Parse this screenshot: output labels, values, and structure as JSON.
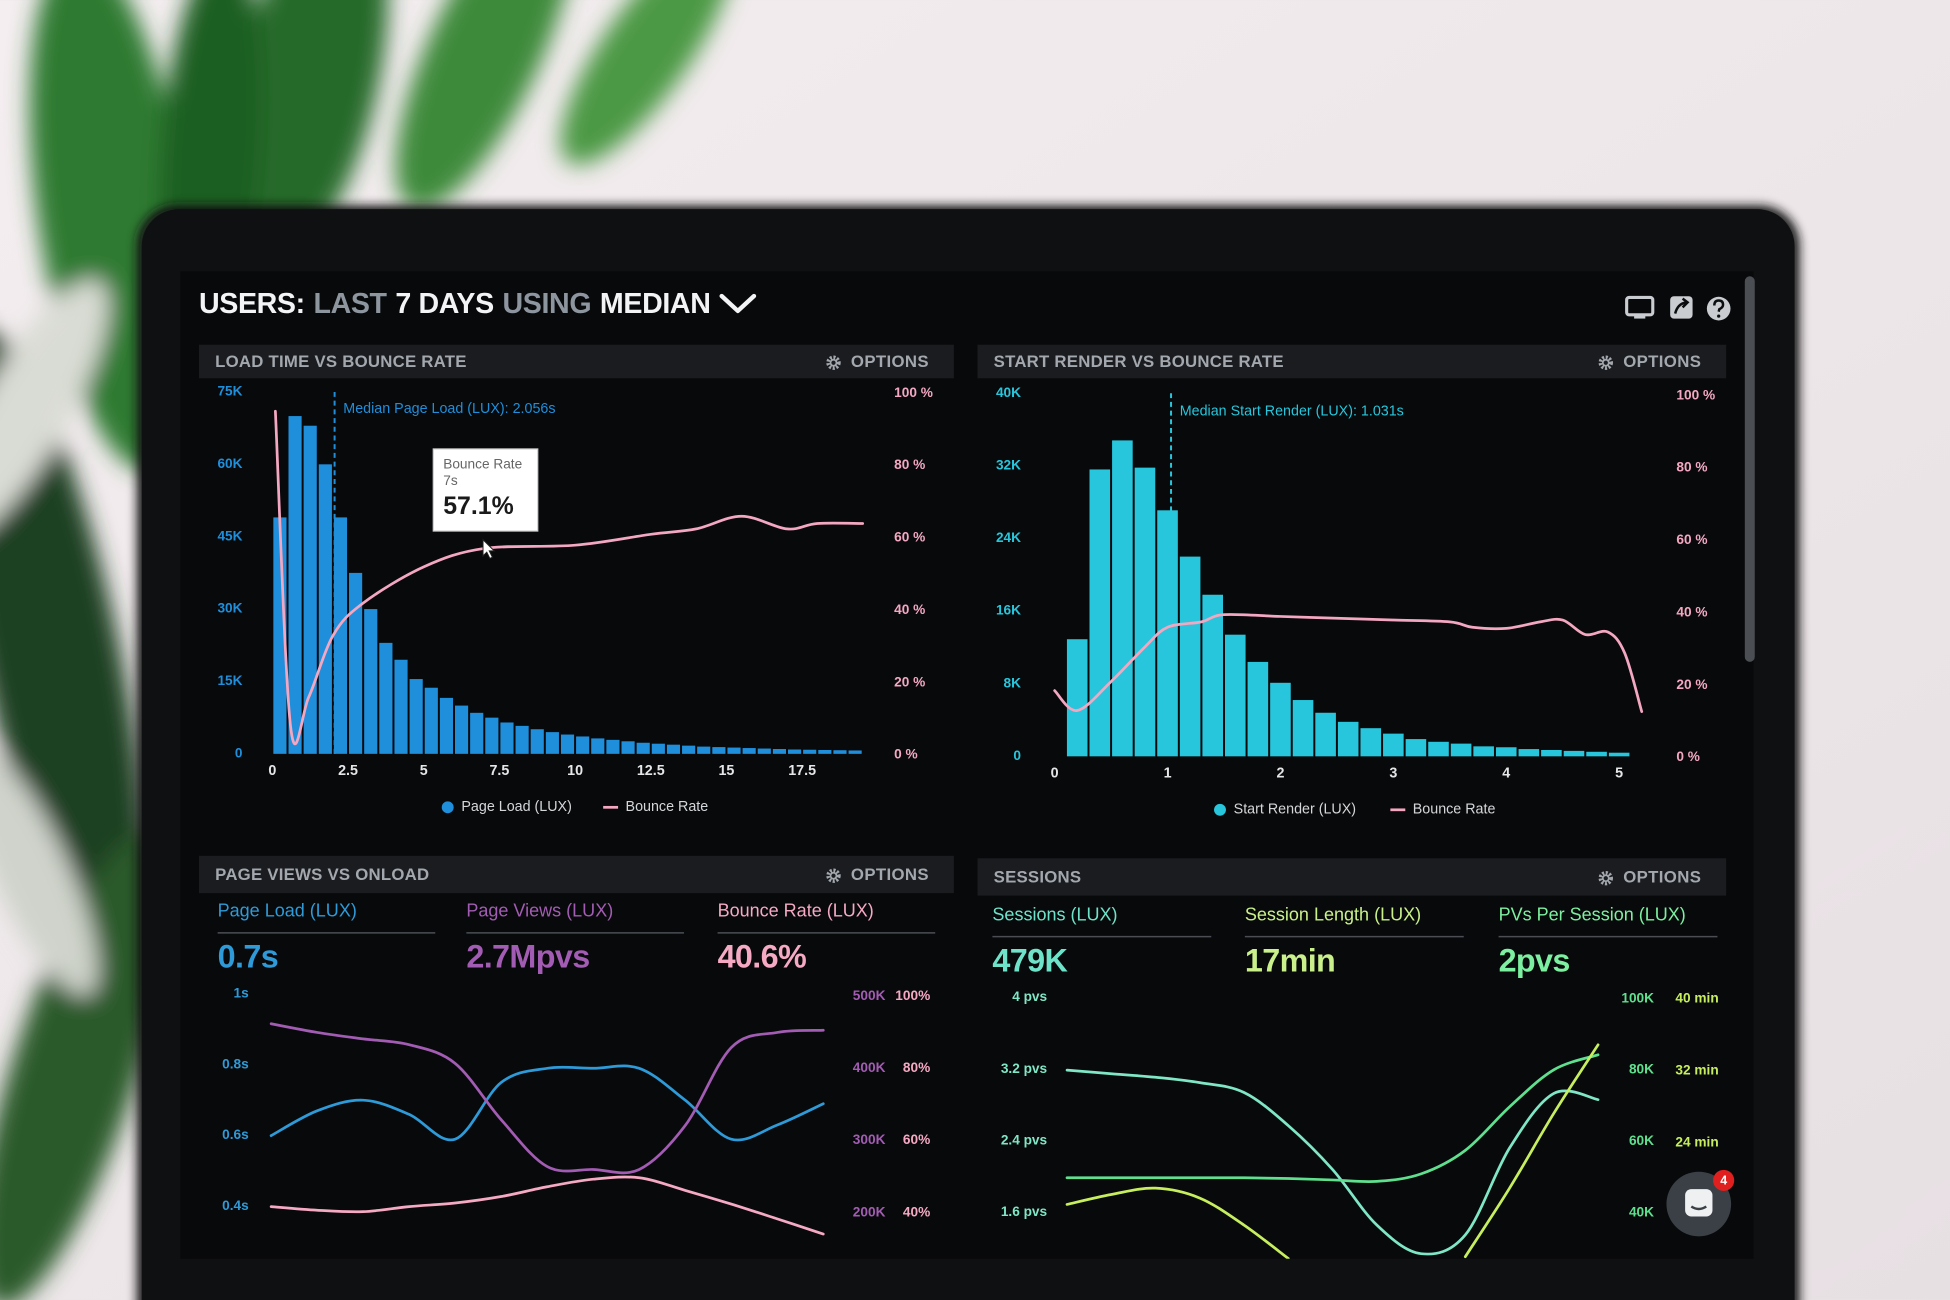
{
  "header": {
    "title": [
      "USERS:",
      "LAST",
      "7 DAYS",
      "USING",
      "MEDIAN"
    ]
  },
  "chat_widget": {
    "badge": "4"
  },
  "chart_data": [
    {
      "type": "histogram",
      "title": "LOAD TIME VS BOUNCE RATE",
      "options": "OPTIONS",
      "bins": [
        0,
        0.5,
        1,
        1.5,
        2,
        2.5,
        3,
        3.5,
        4,
        4.5,
        5,
        5.5,
        6,
        6.5,
        7,
        7.5,
        8,
        8.5,
        9,
        9.5,
        10,
        10.5,
        11,
        11.5,
        12,
        12.5,
        13,
        13.5,
        14,
        14.5,
        15,
        15.5,
        16,
        16.5,
        17,
        17.5,
        18,
        18.5,
        19,
        19.5
      ],
      "series": [
        {
          "name": "Page Load (LUX)",
          "color": "#1f8fdc",
          "values": [
            49000,
            70000,
            68000,
            60000,
            49000,
            37500,
            30000,
            23000,
            19500,
            15500,
            13700,
            11600,
            10000,
            8500,
            7500,
            6500,
            5800,
            5100,
            4500,
            4000,
            3600,
            3200,
            2900,
            2600,
            2300,
            2100,
            1900,
            1700,
            1500,
            1400,
            1300,
            1200,
            1100,
            1000,
            900,
            850,
            800,
            750,
            700
          ]
        },
        {
          "name": "Bounce Rate",
          "color": "#f4a7c1",
          "type": "line",
          "axis": "y2",
          "x": [
            0.1,
            0.6,
            1.2,
            2,
            3,
            5,
            7,
            10,
            12.5,
            14,
            15.5,
            17,
            18,
            19.5
          ],
          "values": [
            95,
            8,
            16,
            33,
            42,
            52,
            57.1,
            58,
            61,
            62.5,
            66,
            62.5,
            64,
            64
          ]
        }
      ],
      "xlim": [
        -0.3,
        19.85
      ],
      "xticks": [
        0,
        2.5,
        5,
        7.5,
        10,
        12.5,
        15,
        17.5
      ],
      "ylim": [
        0,
        75000
      ],
      "yticks": [
        0,
        {
          "value": 15000,
          "label": "15K"
        },
        {
          "value": 30000,
          "label": "30K"
        },
        {
          "value": 45000,
          "label": "45K"
        },
        {
          "value": 60000,
          "label": "60K"
        },
        {
          "value": 75000,
          "label": "75K"
        }
      ],
      "y2lim": [
        0,
        100
      ],
      "y2ticks": [
        {
          "value": 0,
          "label": "0 %"
        },
        {
          "value": 20,
          "label": "20 %"
        },
        {
          "value": 40,
          "label": "40 %"
        },
        {
          "value": 60,
          "label": "60 %"
        },
        {
          "value": 80,
          "label": "80 %"
        },
        {
          "value": 100,
          "label": "100 %"
        }
      ],
      "annotations": [
        {
          "text": "Median Page Load (LUX): 2.056s",
          "x": 2.056
        }
      ],
      "tooltip": {
        "title": "Bounce Rate",
        "x": 7,
        "x_label": "7s",
        "value": 57.1,
        "value_label": "57.1%"
      }
    },
    {
      "type": "histogram",
      "title": "START RENDER VS BOUNCE RATE",
      "options": "OPTIONS",
      "bins": [
        0.1,
        0.3,
        0.5,
        0.7,
        0.9,
        1.1,
        1.3,
        1.5,
        1.7,
        1.9,
        2.1,
        2.3,
        2.5,
        2.7,
        2.9,
        3.1,
        3.3,
        3.5,
        3.7,
        3.9,
        4.1,
        4.3,
        4.5,
        4.7,
        4.9,
        5.1
      ],
      "series": [
        {
          "name": "Start Render (LUX)",
          "color": "#27c6dc",
          "values": [
            12900,
            31600,
            34800,
            31800,
            27100,
            22000,
            17800,
            13400,
            10400,
            8100,
            6200,
            4800,
            3800,
            3100,
            2500,
            1900,
            1600,
            1400,
            1100,
            1000,
            800,
            700,
            600,
            500,
            400
          ]
        },
        {
          "name": "Bounce Rate",
          "color": "#f4a7c1",
          "type": "line",
          "axis": "y2",
          "x": [
            0,
            0.2,
            0.5,
            0.8,
            1,
            1.3,
            1.5,
            2,
            2.5,
            3,
            3.5,
            3.7,
            4,
            4.3,
            4.5,
            4.7,
            4.9,
            5.05,
            5.2
          ],
          "values": [
            18.5,
            13,
            21,
            30.6,
            36,
            37.5,
            39.5,
            39,
            38.5,
            38,
            37.5,
            36,
            35.7,
            37.5,
            38,
            34,
            34.7,
            28.8,
            12.7
          ]
        }
      ],
      "xlim": [
        -0.05,
        5.3
      ],
      "xticks": [
        0,
        1,
        2,
        3,
        4,
        5
      ],
      "ylim": [
        0,
        40000
      ],
      "yticks": [
        0,
        {
          "value": 8000,
          "label": "8K"
        },
        {
          "value": 16000,
          "label": "16K"
        },
        {
          "value": 24000,
          "label": "24K"
        },
        {
          "value": 32000,
          "label": "32K"
        },
        {
          "value": 40000,
          "label": "40K"
        }
      ],
      "y2lim": [
        0,
        100
      ],
      "y2ticks": [
        {
          "value": 0,
          "label": "0 %"
        },
        {
          "value": 20,
          "label": "20 %"
        },
        {
          "value": 40,
          "label": "40 %"
        },
        {
          "value": 60,
          "label": "60 %"
        },
        {
          "value": 80,
          "label": "80 %"
        },
        {
          "value": 100,
          "label": "100 %"
        }
      ],
      "annotations": [
        {
          "text": "Median Start Render (LUX): 1.031s",
          "x": 1.031
        }
      ]
    },
    {
      "type": "line",
      "title": "PAGE VIEWS VS ONLOAD",
      "options": "OPTIONS",
      "stats": [
        {
          "name": "Page Load (LUX)",
          "value": "0.7s",
          "color": "#2e9ad8"
        },
        {
          "name": "Page Views (LUX)",
          "value": "2.7Mpvs",
          "color": "#a35cb3"
        },
        {
          "name": "Bounce Rate (LUX)",
          "value": "40.6%",
          "color": "#f5a9c3"
        }
      ],
      "categories": [
        null,
        null,
        null,
        null,
        null,
        null,
        null,
        null,
        null,
        null,
        null,
        null,
        null
      ],
      "series": [
        {
          "color": "#2e9ad8",
          "values": [
            0.6,
            0.67,
            0.7,
            0.66,
            0.59,
            0.75,
            0.79,
            0.79,
            0.79,
            0.7,
            0.59,
            0.63,
            0.69
          ]
        },
        {
          "color": "#a35cb3",
          "axis": "y2",
          "values": [
            462000,
            450000,
            441000,
            433000,
            407000,
            329000,
            264000,
            260000,
            260000,
            321000,
            429000,
            450000,
            453000
          ]
        },
        {
          "color": "#f5a9c3",
          "axis": "y3",
          "values": [
            41.7,
            40.7,
            40.3,
            41.7,
            42.7,
            44.5,
            47.2,
            49.3,
            49.7,
            46.2,
            42.4,
            38.3,
            34.1
          ]
        }
      ],
      "ylim": [
        0.3,
        1
      ],
      "yticks": [
        {
          "value": 1,
          "label": "1s"
        },
        {
          "value": 0.8,
          "label": "0.8s"
        },
        {
          "value": 0.6,
          "label": "0.6s"
        },
        {
          "value": 0.4,
          "label": "0.4s"
        }
      ],
      "y2lim": [
        150000,
        500000
      ],
      "y2ticks": [
        {
          "value": 500000,
          "label": "500K"
        },
        {
          "value": 400000,
          "label": "400K"
        },
        {
          "value": 300000,
          "label": "300K"
        },
        {
          "value": 200000,
          "label": "200K"
        }
      ],
      "y3lim": [
        30,
        100
      ],
      "y3ticks": [
        {
          "value": 100,
          "label": "100%"
        },
        {
          "value": 80,
          "label": "80%"
        },
        {
          "value": 60,
          "label": "60%"
        },
        {
          "value": 40,
          "label": "40%"
        }
      ]
    },
    {
      "type": "line",
      "title": "SESSIONS",
      "options": "OPTIONS",
      "stats": [
        {
          "name": "Sessions (LUX)",
          "value": "479K",
          "color": "#6fe3c9"
        },
        {
          "name": "Session Length (LUX)",
          "value": "17min",
          "color": "#c9f08a"
        },
        {
          "name": "PVs Per Session (LUX)",
          "value": "2pvs",
          "color": "#7cf0a0"
        }
      ],
      "categories": [
        null,
        null,
        null,
        null,
        null,
        null,
        null,
        null,
        null,
        null,
        null,
        null,
        null
      ],
      "series": [
        {
          "color": "#7fe6c6",
          "values": [
            3.19,
            3.15,
            3.11,
            3.05,
            2.94,
            2.57,
            2.08,
            1.46,
            1.14,
            1.35,
            2.32,
            2.93,
            2.86
          ]
        },
        {
          "color": "#5fe08e",
          "axis": "y2",
          "values": [
            49800,
            49800,
            49800,
            49800,
            49800,
            49600,
            49200,
            48800,
            50900,
            57500,
            69700,
            80100,
            84300
          ]
        },
        {
          "color": "#c6ee5e",
          "axis": "y3",
          "values": [
            17.2,
            18.3,
            19,
            17.9,
            14.9,
            11.2,
            null,
            null,
            null,
            11.4,
            19,
            27.3,
            34.9
          ]
        }
      ],
      "ylim": [
        1,
        4
      ],
      "yticks": [
        {
          "value": 4,
          "label": "4 pvs"
        },
        {
          "value": 3.2,
          "label": "3.2 pvs"
        },
        {
          "value": 2.4,
          "label": "2.4 pvs"
        },
        {
          "value": 1.6,
          "label": "1.6 pvs"
        }
      ],
      "y2lim": [
        25000,
        100000
      ],
      "y2ticks": [
        {
          "value": 100000,
          "label": "100K"
        },
        {
          "value": 80000,
          "label": "80K"
        },
        {
          "value": 60000,
          "label": "60K"
        },
        {
          "value": 40000,
          "label": "40K"
        }
      ],
      "y3lim": [
        10,
        40
      ],
      "y3ticks": [
        {
          "value": 40,
          "label": "40 min"
        },
        {
          "value": 32,
          "label": "32 min"
        },
        {
          "value": 24,
          "label": "24 min"
        }
      ]
    }
  ]
}
